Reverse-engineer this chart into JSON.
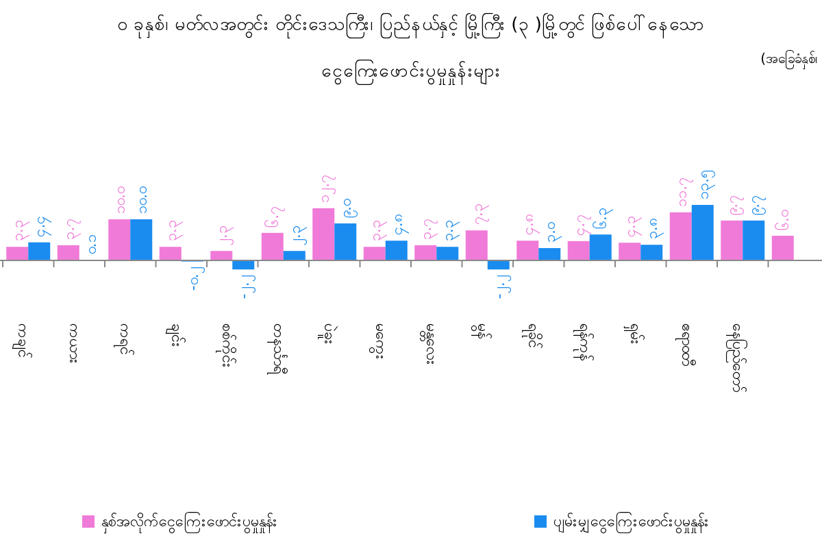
{
  "chart_data": {
    "type": "bar",
    "title": "၀ ခုနှစ်၊ မတ်လအတွင်း တိုင်းဒေသကြီး၊ ပြည်နယ်နှင့် မြို့ကြီး (၃ )မြို့တွင် ဖြစ်ပေါ်နေသော",
    "subtitle": "ငွေကြေးဖောင်းပွမှုနှုန်းများ",
    "annotations": [
      "(အခြေခံနှစ်၊"
    ],
    "categories": [
      "ကချင်",
      "ကယား",
      "ကရင်",
      "ချင်း",
      "စစ်ကိုင်း",
      "တနင်္သာရီ",
      "ပဲခူး",
      "မကွေး",
      "မန္တလေး",
      "မွန်",
      "ရခိုင်",
      "ရန်ကုန်",
      "ရှမ်း",
      "ဧရာဝတီ",
      "နေပြည်တော်",
      null
    ],
    "series": [
      {
        "name": "နှစ်အလိုက်ငွေကြေးဖောင်းပွမှုနှုန်း",
        "color": "#f07ad8",
        "values": [
          3.3,
          3.7,
          10.0,
          3.3,
          2.3,
          6.7,
          12.7,
          3.3,
          3.7,
          7.3,
          4.8,
          4.7,
          4.3,
          11.7,
          9.7,
          6.0
        ],
        "value_labels": [
          "၃.၃",
          "၃.၇",
          "၁၀.၀",
          "၃.၃",
          "၂.၃",
          "၆.၇",
          "၁၂.၇",
          "၃.၃",
          "၃.၇",
          "၇.၃",
          "၄.၈",
          "၄.၇",
          "၄.၃",
          "၁၁.၇",
          "၉.၇",
          "၆.၀"
        ]
      },
      {
        "name": "ပျမ်းမျှငွေကြေးဖောင်းပွမှုနှုန်း",
        "color": "#1a8cf0",
        "values": [
          4.4,
          0.1,
          10.0,
          -0.2,
          -2.2,
          2.3,
          9.0,
          4.8,
          3.3,
          -2.2,
          3.0,
          6.3,
          3.8,
          13.5,
          9.7,
          null
        ],
        "value_labels": [
          "၄.၄",
          "၀.၁",
          "၁၀.၀",
          "-၀.၂",
          "-၂.၂",
          "၂.၃",
          "၉.၀",
          "၄.၈",
          "၃.၃",
          "-၂.၂",
          "၃.၀",
          "၆.၃",
          "၃.၈",
          "၁၃.၅",
          "၉.၇",
          null
        ]
      }
    ],
    "grid": false,
    "legend": "bottom",
    "relative": false
  }
}
